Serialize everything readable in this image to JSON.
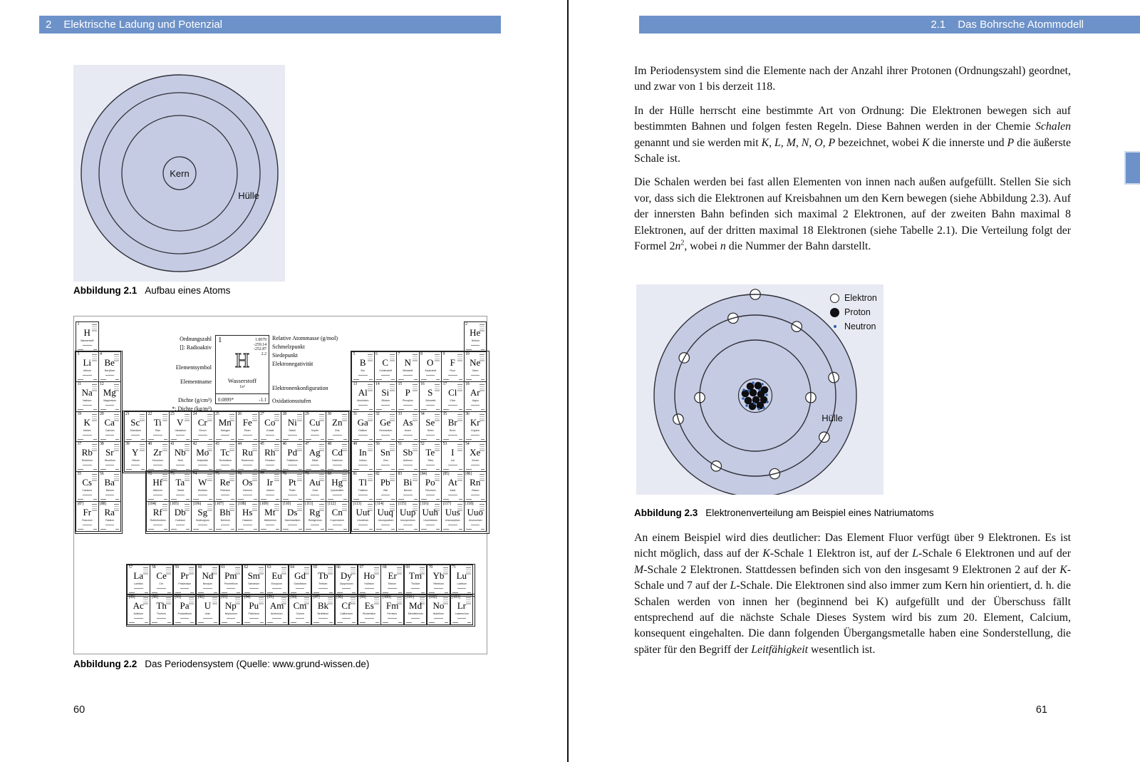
{
  "spread": {
    "left_header": {
      "number": "2",
      "title": "Elektrische Ladung und Potenzial"
    },
    "right_header": {
      "number": "2.1",
      "title": "Das Bohrsche Atommodell"
    },
    "left_page_number": "60",
    "right_page_number": "61",
    "colors": {
      "header_blue": "#6d92c9",
      "panel_bg": "#e8eaf3",
      "shell_fill": "#c5cbe2",
      "stroke_dark": "#2f2f38",
      "neutron_blue": "#2e5fa8"
    }
  },
  "figures": {
    "fig1": {
      "label": "Abbildung 2.1",
      "caption": "Aufbau eines Atoms",
      "kern_label": "Kern",
      "huelle_label": "Hülle"
    },
    "fig2": {
      "label": "Abbildung 2.2",
      "caption": "Das Periodensystem (Quelle: www.grund-wissen.de)"
    },
    "fig3": {
      "label": "Abbildung 2.3",
      "caption": "Elektronenverteilung am Beispiel eines Natriumatoms",
      "huelle_label": "Hülle",
      "legend": [
        {
          "symbol": "electron",
          "label": "Elektron"
        },
        {
          "symbol": "proton",
          "label": "Proton"
        },
        {
          "symbol": "neutron",
          "label": "Neutron"
        }
      ],
      "shell_electrons": [
        2,
        8,
        1
      ],
      "protons": 11,
      "neutrons": 12
    }
  },
  "paragraphs": {
    "p1": [
      {
        "t": "Im Periodensystem sind die Elemente nach der Anzahl ihrer Protonen (Ordnungszahl) geordnet, und zwar von 1 bis derzeit 118."
      }
    ],
    "p2": [
      {
        "t": "In der Hülle herrscht eine bestimmte Art von Ordnung: Die Elektronen bewegen sich auf bestimmten Bahnen und folgen festen Regeln. Diese Bahnen werden in der Chemie "
      },
      {
        "t": "Schalen",
        "i": 1
      },
      {
        "t": " genannt und sie werden mit "
      },
      {
        "t": "K, L, M, N, O, P",
        "i": 1
      },
      {
        "t": " bezeichnet, wobei "
      },
      {
        "t": "K",
        "i": 1
      },
      {
        "t": " die innerste und "
      },
      {
        "t": "P",
        "i": 1
      },
      {
        "t": " die äußerste Schale ist."
      }
    ],
    "p3": [
      {
        "t": "Die Schalen werden bei fast allen Elementen von innen nach außen aufgefüllt. Stellen Sie sich vor, dass sich die Elektronen auf Kreisbahnen um den Kern bewegen (siehe Abbildung 2.3). Auf der innersten Bahn befinden sich maximal 2 Elektronen, auf der zweiten Bahn maximal 8 Elektronen, auf der dritten maximal 18 Elektronen (siehe Tabelle 2.1). Die Verteilung folgt der Formel 2"
      },
      {
        "t": "n",
        "i": 1
      },
      {
        "t": "2",
        "sup": 1
      },
      {
        "t": ", wobei "
      },
      {
        "t": "n",
        "i": 1
      },
      {
        "t": " die Nummer der Bahn darstellt."
      }
    ],
    "p4": [
      {
        "t": "An einem Beispiel wird dies deutlicher: Das Element Fluor verfügt über 9 Elektronen. Es ist nicht möglich, dass auf der "
      },
      {
        "t": "K",
        "i": 1
      },
      {
        "t": "-Schale 1 Elektron ist, auf der "
      },
      {
        "t": "L",
        "i": 1
      },
      {
        "t": "-Schale 6 Elektronen und auf der "
      },
      {
        "t": "M",
        "i": 1
      },
      {
        "t": "-Schale 2 Elektronen. Stattdessen befinden sich von den insgesamt 9 Elektronen 2 auf der "
      },
      {
        "t": "K",
        "i": 1
      },
      {
        "t": "-Schale und 7 auf der "
      },
      {
        "t": "L",
        "i": 1
      },
      {
        "t": "-Schale. Die Elektronen sind also immer zum Kern hin orientiert, d. h. die Schalen werden von innen her (beginnend bei K) aufgefüllt und der Überschuss fällt entsprechend auf die nächste Schale Dieses System wird bis zum 20. Element, Calcium, konsequent eingehalten. Die dann folgenden Übergangsmetalle haben eine Sonderstellung, die später für den Begriff der "
      },
      {
        "t": "Leitfähigkeit",
        "i": 1
      },
      {
        "t": " wesentlich ist."
      }
    ]
  },
  "periodic_table": {
    "legend_left": [
      "Ordnungszahl",
      "[]: Radioaktiv",
      "Elementsymbol",
      "Elementname",
      "Dichte (g/cm³)",
      "*: Dichte (kg/m³)"
    ],
    "legend_right": [
      "Relative Atommasse (g/mol)",
      "Schmelzpunkt",
      "Siedepunkt",
      "Elektronegativität",
      "Elektronenkonfiguration",
      "Oxidationsstufen"
    ],
    "example": {
      "number": "1",
      "mass": "1.0079",
      "melt": "-259.14",
      "boil": "-252.87",
      "en": "2.2",
      "symbol": "H",
      "name": "Wasserstoff",
      "config": "1s¹",
      "density": "0.0899*",
      "oxidation": "-1.1"
    },
    "elements": [
      [
        "1",
        "H",
        "Wasserstoff",
        1,
        1
      ],
      [
        "2",
        "He",
        "Helium",
        1,
        18
      ],
      [
        "3",
        "Li",
        "Lithium",
        2,
        1
      ],
      [
        "4",
        "Be",
        "Beryllium",
        2,
        2
      ],
      [
        "5",
        "B",
        "Bor",
        2,
        13
      ],
      [
        "6",
        "C",
        "Kohlenstoff",
        2,
        14
      ],
      [
        "7",
        "N",
        "Stickstoff",
        2,
        15
      ],
      [
        "8",
        "O",
        "Sauerstoff",
        2,
        16
      ],
      [
        "9",
        "F",
        "Fluor",
        2,
        17
      ],
      [
        "10",
        "Ne",
        "Neon",
        2,
        18
      ],
      [
        "11",
        "Na",
        "Natrium",
        3,
        1
      ],
      [
        "12",
        "Mg",
        "Magnesium",
        3,
        2
      ],
      [
        "13",
        "Al",
        "Aluminium",
        3,
        13
      ],
      [
        "14",
        "Si",
        "Silicium",
        3,
        14
      ],
      [
        "15",
        "P",
        "Phosphor",
        3,
        15
      ],
      [
        "16",
        "S",
        "Schwefel",
        3,
        16
      ],
      [
        "17",
        "Cl",
        "Chlor",
        3,
        17
      ],
      [
        "18",
        "Ar",
        "Argon",
        3,
        18
      ],
      [
        "19",
        "K",
        "Kalium",
        4,
        1
      ],
      [
        "20",
        "Ca",
        "Calcium",
        4,
        2
      ],
      [
        "21",
        "Sc",
        "Scandium",
        4,
        3
      ],
      [
        "22",
        "Ti",
        "Titan",
        4,
        4
      ],
      [
        "23",
        "V",
        "Vanadium",
        4,
        5
      ],
      [
        "24",
        "Cr",
        "Chrom",
        4,
        6
      ],
      [
        "25",
        "Mn",
        "Mangan",
        4,
        7
      ],
      [
        "26",
        "Fe",
        "Eisen",
        4,
        8
      ],
      [
        "27",
        "Co",
        "Kobalt",
        4,
        9
      ],
      [
        "28",
        "Ni",
        "Nickel",
        4,
        10
      ],
      [
        "29",
        "Cu",
        "Kupfer",
        4,
        11
      ],
      [
        "30",
        "Zn",
        "Zink",
        4,
        12
      ],
      [
        "31",
        "Ga",
        "Gallium",
        4,
        13
      ],
      [
        "32",
        "Ge",
        "Germanium",
        4,
        14
      ],
      [
        "33",
        "As",
        "Arsen",
        4,
        15
      ],
      [
        "34",
        "Se",
        "Selen",
        4,
        16
      ],
      [
        "35",
        "Br",
        "Brom",
        4,
        17
      ],
      [
        "36",
        "Kr",
        "Krypton",
        4,
        18
      ],
      [
        "37",
        "Rb",
        "Rubidium",
        5,
        1
      ],
      [
        "38",
        "Sr",
        "Strontium",
        5,
        2
      ],
      [
        "39",
        "Y",
        "Yttrium",
        5,
        3
      ],
      [
        "40",
        "Zr",
        "Zirconium",
        5,
        4
      ],
      [
        "41",
        "Nb",
        "Niob",
        5,
        5
      ],
      [
        "42",
        "Mo",
        "Molybdän",
        5,
        6
      ],
      [
        "43",
        "Tc",
        "Technetium",
        5,
        7
      ],
      [
        "44",
        "Ru",
        "Ruthenium",
        5,
        8
      ],
      [
        "45",
        "Rh",
        "Rhodium",
        5,
        9
      ],
      [
        "46",
        "Pd",
        "Palladium",
        5,
        10
      ],
      [
        "47",
        "Ag",
        "Silber",
        5,
        11
      ],
      [
        "48",
        "Cd",
        "Cadmium",
        5,
        12
      ],
      [
        "49",
        "In",
        "Indium",
        5,
        13
      ],
      [
        "50",
        "Sn",
        "Zinn",
        5,
        14
      ],
      [
        "51",
        "Sb",
        "Antimon",
        5,
        15
      ],
      [
        "52",
        "Te",
        "Tellur",
        5,
        16
      ],
      [
        "53",
        "I",
        "Iod",
        5,
        17
      ],
      [
        "54",
        "Xe",
        "Xenon",
        5,
        18
      ],
      [
        "55",
        "Cs",
        "Caesium",
        6,
        1
      ],
      [
        "56",
        "Ba",
        "Barium",
        6,
        2
      ],
      [
        "72",
        "Hf",
        "Hafnium",
        6,
        4
      ],
      [
        "73",
        "Ta",
        "Tantal",
        6,
        5
      ],
      [
        "74",
        "W",
        "Wolfram",
        6,
        6
      ],
      [
        "75",
        "Re",
        "Rhenium",
        6,
        7
      ],
      [
        "76",
        "Os",
        "Osmium",
        6,
        8
      ],
      [
        "77",
        "Ir",
        "Iridium",
        6,
        9
      ],
      [
        "78",
        "Pt",
        "Platin",
        6,
        10
      ],
      [
        "79",
        "Au",
        "Gold",
        6,
        11
      ],
      [
        "80",
        "Hg",
        "Quecksilber",
        6,
        12
      ],
      [
        "81",
        "Tl",
        "Thallium",
        6,
        13
      ],
      [
        "82",
        "Pb",
        "Blei",
        6,
        14
      ],
      [
        "83",
        "Bi",
        "Bismut",
        6,
        15
      ],
      [
        "[84]",
        "Po",
        "Polonium",
        6,
        16
      ],
      [
        "[85]",
        "At",
        "Astat",
        6,
        17
      ],
      [
        "[86]",
        "Rn",
        "Radon",
        6,
        18
      ],
      [
        "[87]",
        "Fr",
        "Francium",
        7,
        1
      ],
      [
        "[88]",
        "Ra",
        "Radium",
        7,
        2
      ],
      [
        "[104]",
        "Rf",
        "Rutherfordium",
        7,
        4
      ],
      [
        "[105]",
        "Db",
        "Dubnium",
        7,
        5
      ],
      [
        "[106]",
        "Sg",
        "Seaborgium",
        7,
        6
      ],
      [
        "[107]",
        "Bh",
        "Bohrium",
        7,
        7
      ],
      [
        "[108]",
        "Hs",
        "Hassium",
        7,
        8
      ],
      [
        "[109]",
        "Mt",
        "Meitnerium",
        7,
        9
      ],
      [
        "[110]",
        "Ds",
        "Darmstadtium",
        7,
        10
      ],
      [
        "[111]",
        "Rg",
        "Röntgenium",
        7,
        11
      ],
      [
        "[112]",
        "Cn",
        "Copernicium",
        7,
        12
      ],
      [
        "[113]",
        "Uut",
        "Ununtrium",
        7,
        13
      ],
      [
        "[114]",
        "Uuq",
        "Ununquadium",
        7,
        14
      ],
      [
        "[115]",
        "Uup",
        "Ununpentium",
        7,
        15
      ],
      [
        "[116]",
        "Uuh",
        "Ununhexium",
        7,
        16
      ],
      [
        "[117]",
        "Uus",
        "Ununseptium",
        7,
        17
      ],
      [
        "[118]",
        "Uuo",
        "Ununoctium",
        7,
        18
      ],
      [
        "57",
        "La",
        "Lanthan",
        8,
        1
      ],
      [
        "58",
        "Ce",
        "Cer",
        8,
        2
      ],
      [
        "59",
        "Pr",
        "Praseodym",
        8,
        3
      ],
      [
        "60",
        "Nd",
        "Neodym",
        8,
        4
      ],
      [
        "61",
        "Pm",
        "Promethium",
        8,
        5
      ],
      [
        "62",
        "Sm",
        "Samarium",
        8,
        6
      ],
      [
        "63",
        "Eu",
        "Europium",
        8,
        7
      ],
      [
        "64",
        "Gd",
        "Gadolinium",
        8,
        8
      ],
      [
        "65",
        "Tb",
        "Terbium",
        8,
        9
      ],
      [
        "66",
        "Dy",
        "Dysprosium",
        8,
        10
      ],
      [
        "67",
        "Ho",
        "Holmium",
        8,
        11
      ],
      [
        "68",
        "Er",
        "Erbium",
        8,
        12
      ],
      [
        "69",
        "Tm",
        "Thulium",
        8,
        13
      ],
      [
        "70",
        "Yb",
        "Ytterbium",
        8,
        14
      ],
      [
        "71",
        "Lu",
        "Lutetium",
        8,
        15
      ],
      [
        "[89]",
        "Ac",
        "Actinium",
        9,
        1
      ],
      [
        "[90]",
        "Th",
        "Thorium",
        9,
        2
      ],
      [
        "[91]",
        "Pa",
        "Protactinium",
        9,
        3
      ],
      [
        "[92]",
        "U",
        "Uran",
        9,
        4
      ],
      [
        "[93]",
        "Np",
        "Neptunium",
        9,
        5
      ],
      [
        "[94]",
        "Pu",
        "Plutonium",
        9,
        6
      ],
      [
        "[95]",
        "Am",
        "Americium",
        9,
        7
      ],
      [
        "[96]",
        "Cm",
        "Curium",
        9,
        8
      ],
      [
        "[97]",
        "Bk",
        "Berkelium",
        9,
        9
      ],
      [
        "[98]",
        "Cf",
        "Californium",
        9,
        10
      ],
      [
        "[99]",
        "Es",
        "Einsteinium",
        9,
        11
      ],
      [
        "[100]",
        "Fm",
        "Fermium",
        9,
        12
      ],
      [
        "[101]",
        "Md",
        "Mendelevium",
        9,
        13
      ],
      [
        "[102]",
        "No",
        "Nobelium",
        9,
        14
      ],
      [
        "[103]",
        "Lr",
        "Lawrencium",
        9,
        15
      ]
    ]
  }
}
